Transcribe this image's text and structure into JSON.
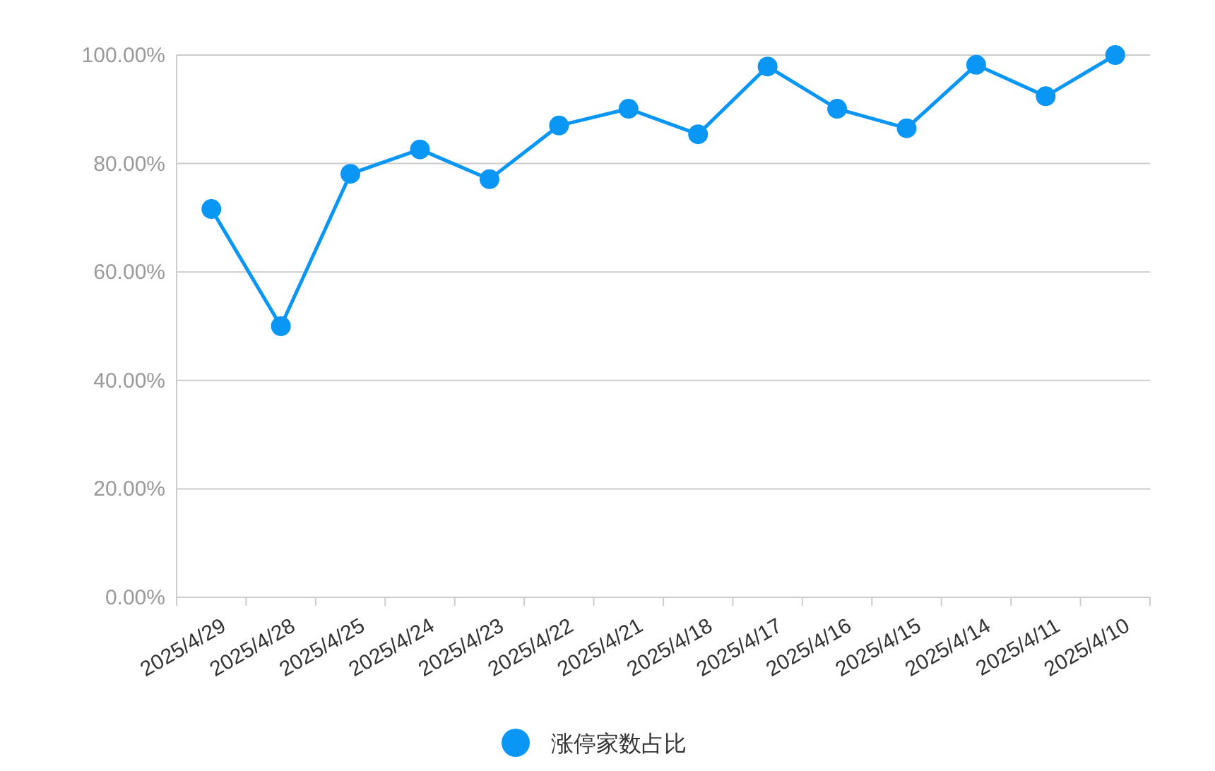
{
  "chart_data": {
    "type": "line",
    "categories": [
      "2025/4/29",
      "2025/4/28",
      "2025/4/25",
      "2025/4/24",
      "2025/4/23",
      "2025/4/22",
      "2025/4/21",
      "2025/4/18",
      "2025/4/17",
      "2025/4/16",
      "2025/4/15",
      "2025/4/14",
      "2025/4/11",
      "2025/4/10"
    ],
    "series": [
      {
        "name": "涨停家数占比",
        "color": "#0a96f5",
        "values": [
          71.6,
          50.0,
          78.1,
          82.6,
          77.1,
          87.0,
          90.1,
          85.4,
          97.9,
          90.1,
          86.5,
          98.2,
          92.4,
          100
        ]
      }
    ],
    "ylim": [
      0,
      100
    ],
    "yticks": [
      {
        "value": 0,
        "label": "0.00%"
      },
      {
        "value": 20,
        "label": "20.00%"
      },
      {
        "value": 40,
        "label": "40.00%"
      },
      {
        "value": 60,
        "label": "60.00%"
      },
      {
        "value": 80,
        "label": "80.00%"
      },
      {
        "value": 100,
        "label": "100.00%"
      }
    ],
    "grid": "y",
    "legend": "bottom",
    "marker": "circle",
    "line_style": "solid"
  }
}
